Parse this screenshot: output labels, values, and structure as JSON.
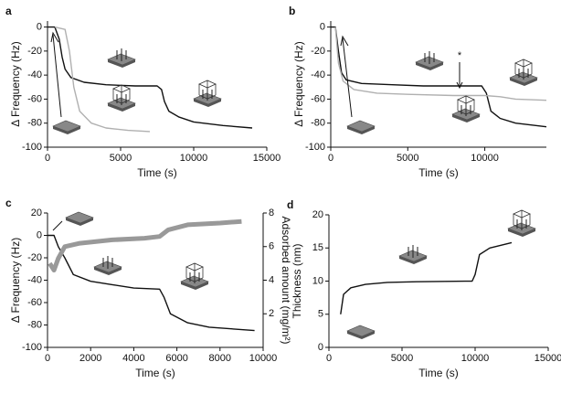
{
  "chart_data": [
    {
      "type": "line",
      "panel_label": "a",
      "x_label": "Time (s)",
      "y_label": "Δ Frequency (Hz)",
      "xlim": [
        0,
        15000
      ],
      "xticks": [
        0,
        5000,
        10000,
        15000
      ],
      "ylim": [
        -100,
        5
      ],
      "yticks": [
        -100,
        -80,
        -60,
        -40,
        -20,
        0
      ],
      "series": [
        {
          "color": "#111111",
          "x": [
            0,
            500,
            800,
            1000,
            1200,
            1600,
            2500,
            4000,
            6000,
            7500,
            7800,
            8000,
            8300,
            9000,
            10000,
            12000,
            14000
          ],
          "values": [
            0,
            0,
            -10,
            -25,
            -35,
            -42,
            -46,
            -48,
            -49,
            -49,
            -52,
            -62,
            -70,
            -75,
            -79,
            -82,
            -84
          ]
        },
        {
          "color": "#b0b0b0",
          "x": [
            500,
            1200,
            1500,
            1800,
            2200,
            3000,
            4000,
            5500,
            7000
          ],
          "values": [
            0,
            -2,
            -20,
            -50,
            -70,
            -80,
            -84,
            -86,
            -87
          ]
        }
      ]
    },
    {
      "type": "line",
      "panel_label": "b",
      "x_label": "Time (s)",
      "y_label": "Δ Frequency (Hz)",
      "annotation": "*",
      "xlim": [
        0,
        14000
      ],
      "xticks": [
        0,
        5000,
        10000
      ],
      "ylim": [
        -100,
        5
      ],
      "yticks": [
        -100,
        -80,
        -60,
        -40,
        -20,
        0
      ],
      "series": [
        {
          "color": "#111111",
          "x": [
            0,
            300,
            500,
            700,
            1000,
            2000,
            4000,
            6000,
            9800,
            10100,
            10400,
            11000,
            12000,
            14000
          ],
          "values": [
            0,
            0,
            -20,
            -38,
            -44,
            -47,
            -48,
            -49,
            -49,
            -55,
            -70,
            -76,
            -80,
            -83
          ]
        },
        {
          "color": "#b0b0b0",
          "x": [
            300,
            500,
            800,
            1500,
            3000,
            5000,
            8000,
            10000,
            11000,
            12000,
            14000
          ],
          "values": [
            0,
            -30,
            -45,
            -52,
            -55,
            -56,
            -57,
            -57,
            -58,
            -60,
            -61
          ]
        }
      ]
    },
    {
      "type": "line",
      "panel_label": "c",
      "x_label": "Time (s)",
      "y_label": "Δ Frequency (Hz)",
      "y2_label": "Adsorbed amount (mg/m²)",
      "xlim": [
        0,
        10000
      ],
      "xticks": [
        0,
        2000,
        4000,
        6000,
        8000,
        10000
      ],
      "ylim": [
        -100,
        20
      ],
      "yticks": [
        -100,
        -80,
        -60,
        -40,
        -20,
        0,
        20
      ],
      "y2lim": [
        0,
        8
      ],
      "y2ticks": [
        2,
        4,
        6,
        8
      ],
      "series": [
        {
          "color": "#111111",
          "x": [
            0,
            300,
            500,
            800,
            1200,
            2000,
            3000,
            4000,
            5200,
            5400,
            5700,
            6500,
            7500,
            9600
          ],
          "values": [
            0,
            0,
            -10,
            -20,
            -35,
            -41,
            -44,
            -47,
            -48,
            -55,
            -70,
            -78,
            -82,
            -85
          ]
        },
        {
          "color": "#999999",
          "axis": "y2",
          "x": [
            100,
            300,
            500,
            800,
            1500,
            3000,
            4500,
            5200,
            5600,
            6500,
            8000,
            9000
          ],
          "values": [
            5.0,
            4.6,
            5.3,
            6.0,
            6.2,
            6.4,
            6.5,
            6.6,
            7.0,
            7.3,
            7.4,
            7.5
          ]
        }
      ]
    },
    {
      "type": "line",
      "panel_label": "d",
      "x_label": "Time (s)",
      "y_label": "Thickness (nm)",
      "xlim": [
        0,
        15000
      ],
      "xticks": [
        0,
        5000,
        10000,
        15000
      ],
      "ylim": [
        0,
        20
      ],
      "yticks": [
        0,
        5,
        10,
        15,
        20
      ],
      "series": [
        {
          "color": "#111111",
          "x": [
            800,
            1000,
            1500,
            2500,
            4000,
            6000,
            9800,
            10000,
            10300,
            11000,
            12500
          ],
          "values": [
            5,
            8,
            9,
            9.5,
            9.8,
            9.9,
            10,
            11,
            14,
            15,
            15.8
          ]
        }
      ]
    }
  ]
}
